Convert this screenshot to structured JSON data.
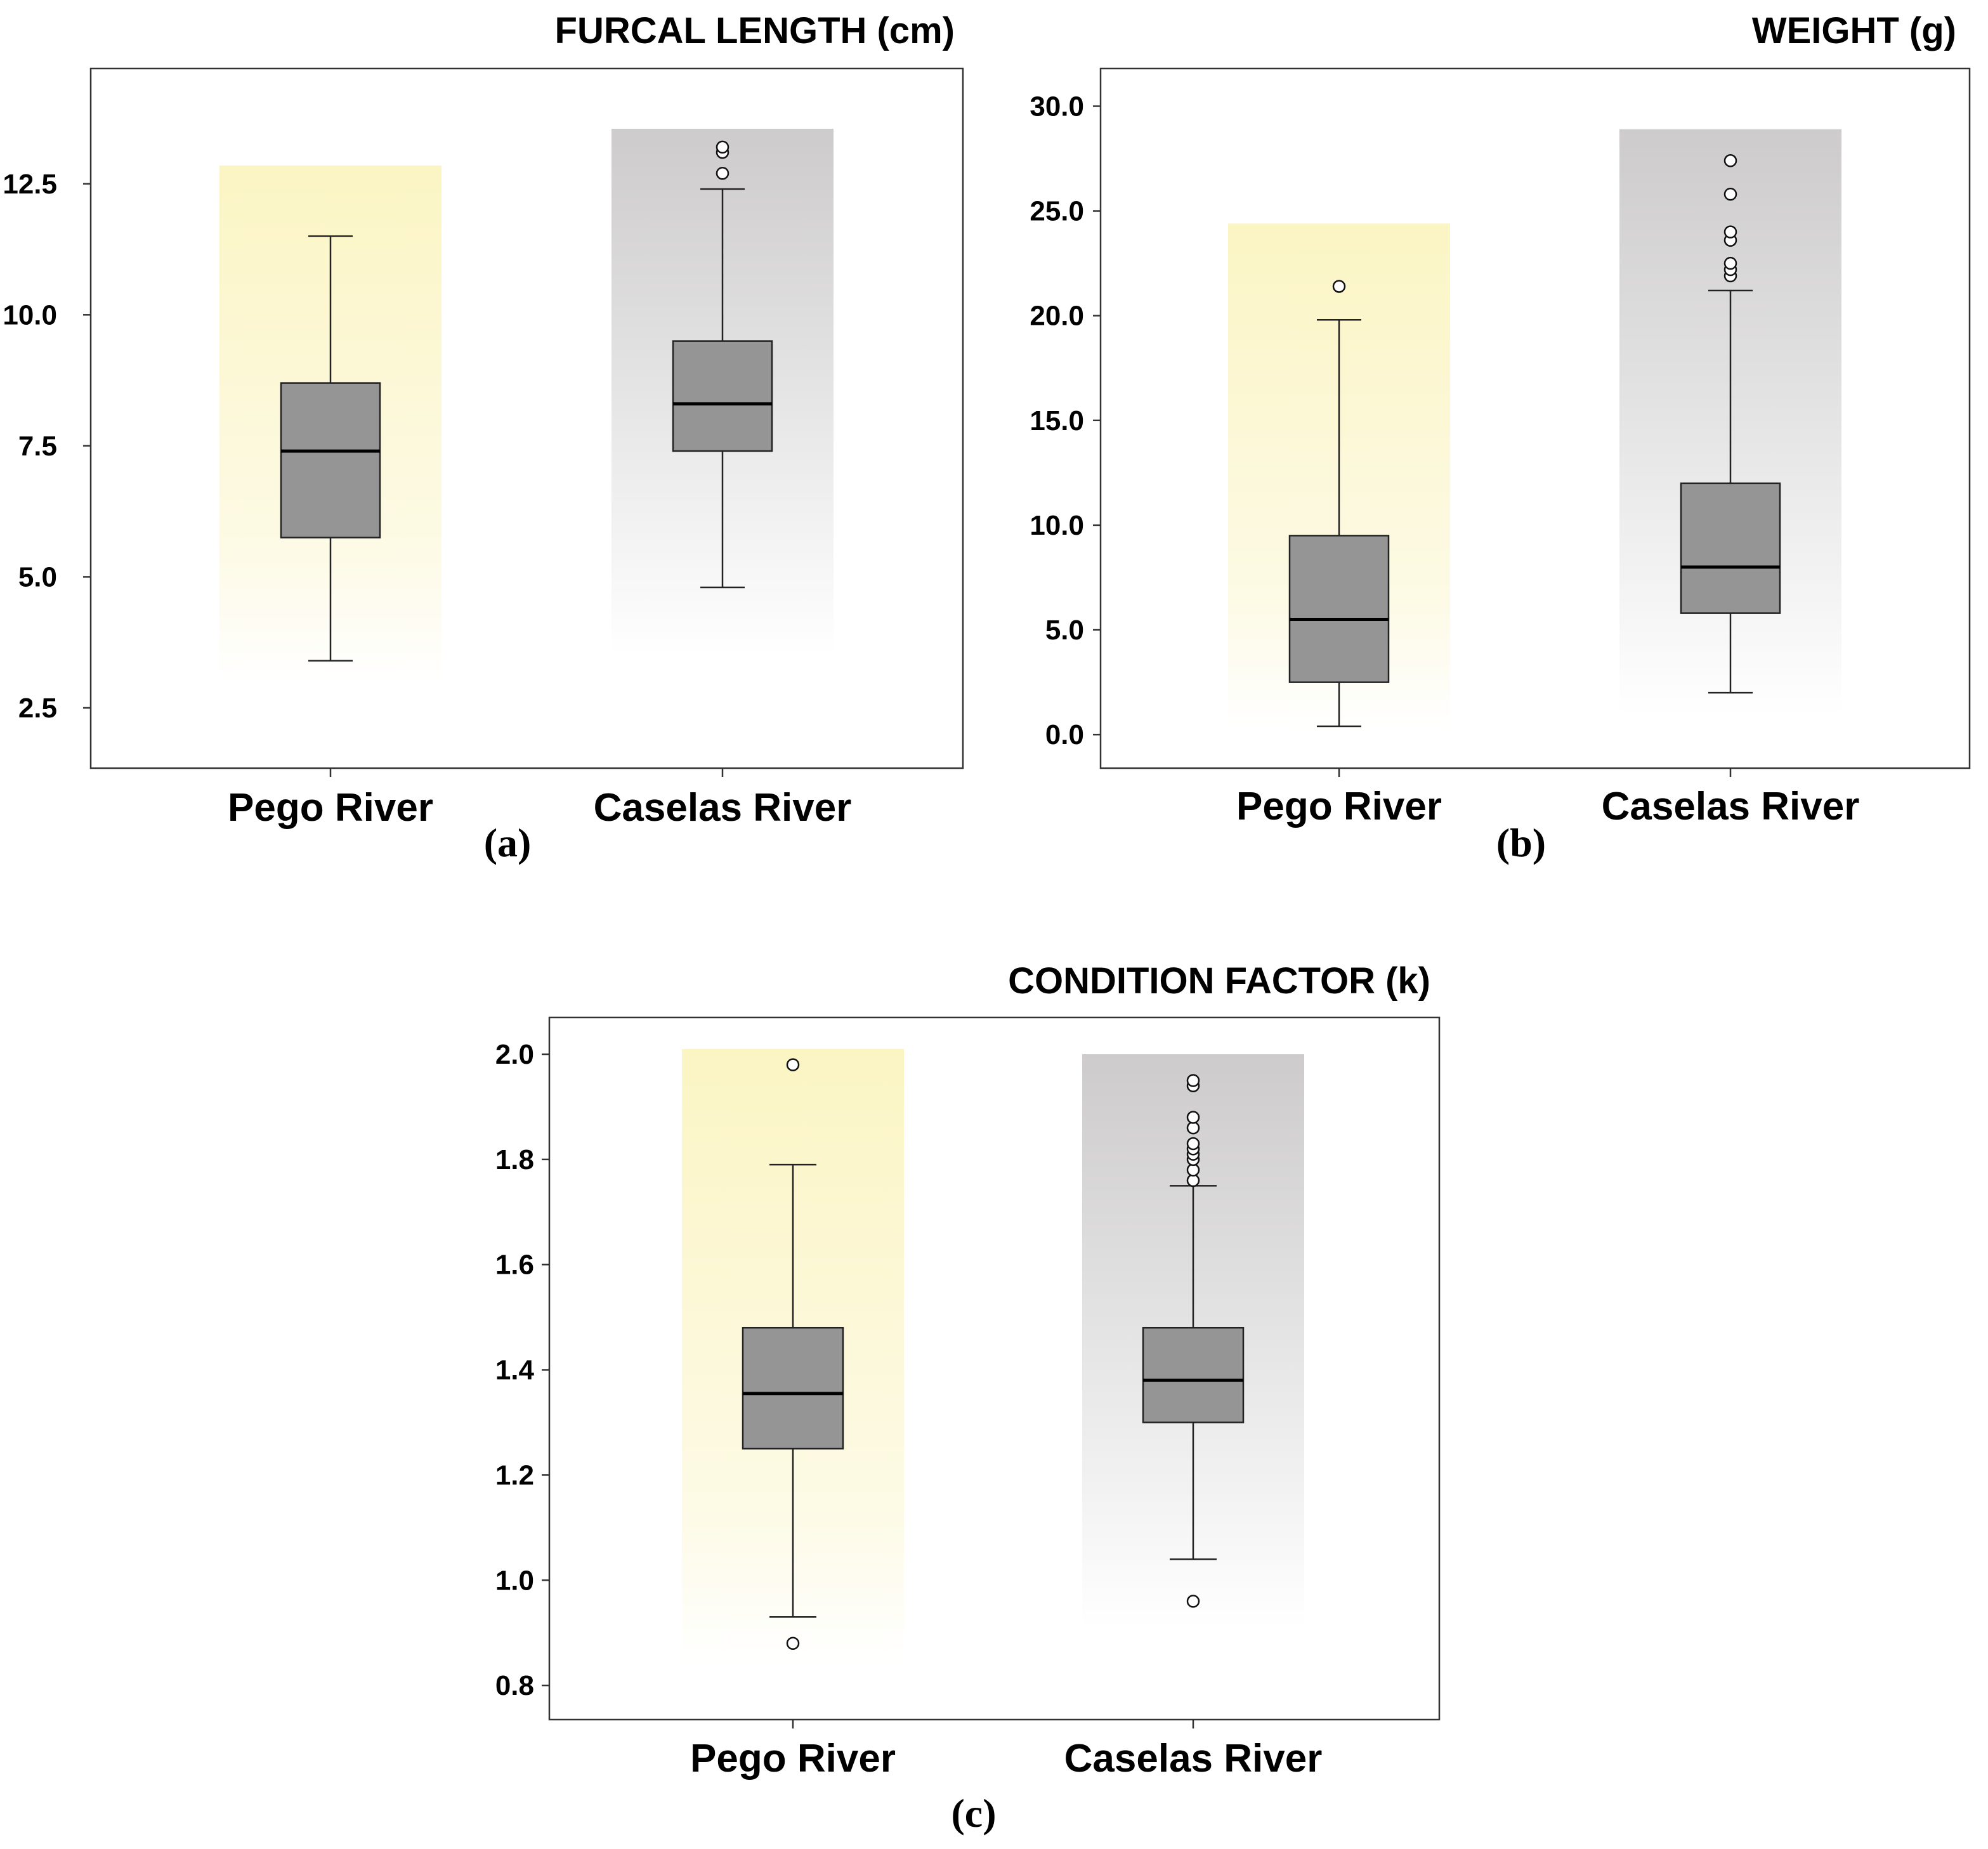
{
  "figure": {
    "colors": {
      "box_fill": "#959595",
      "box_stroke": "#222222",
      "median_stroke": "#000000",
      "pego_background_top": "#fbf5c4",
      "caselas_background_top": "#cdcbcb",
      "background_bottom": "#ffffff"
    }
  },
  "chart_data": [
    {
      "type": "box",
      "panel_label": "(a)",
      "title": "FURCAL LENGTH (cm)",
      "xlabel": "",
      "ylabel": "",
      "ylim": [
        1.35,
        14.7
      ],
      "yticks": [
        2.5,
        5.0,
        7.5,
        10.0,
        12.5
      ],
      "ytick_labels": [
        "2.5",
        "5.0",
        "7.5",
        "10.0",
        "12.5"
      ],
      "categories": [
        "Pego River",
        "Caselas River"
      ],
      "series": [
        {
          "name": "Pego River",
          "background": "yellow",
          "background_top": 12.85,
          "background_bottom": 3.0,
          "whisker_low": 3.4,
          "q1": 5.75,
          "median": 7.4,
          "q3": 8.7,
          "whisker_high": 11.5,
          "outliers": []
        },
        {
          "name": "Caselas River",
          "background": "gray",
          "background_top": 13.55,
          "background_bottom": 3.5,
          "whisker_low": 4.8,
          "q1": 7.4,
          "median": 8.3,
          "q3": 9.5,
          "whisker_high": 12.4,
          "outliers": [
            12.7,
            13.1,
            13.2
          ]
        }
      ]
    },
    {
      "type": "box",
      "panel_label": "(b)",
      "title": "WEIGHT (g)",
      "xlabel": "",
      "ylabel": "",
      "ylim": [
        -1.6,
        31.8
      ],
      "yticks": [
        0.0,
        5.0,
        10.0,
        15.0,
        20.0,
        25.0,
        30.0
      ],
      "ytick_labels": [
        "0.0",
        "5.0",
        "10.0",
        "15.0",
        "20.0",
        "25.0",
        "30.0"
      ],
      "categories": [
        "Pego River",
        "Caselas River"
      ],
      "series": [
        {
          "name": "Pego River",
          "background": "yellow",
          "background_top": 24.4,
          "background_bottom": 0.3,
          "whisker_low": 0.4,
          "q1": 2.5,
          "median": 5.5,
          "q3": 9.5,
          "whisker_high": 19.8,
          "outliers": [
            21.4
          ]
        },
        {
          "name": "Caselas River",
          "background": "gray",
          "background_top": 28.9,
          "background_bottom": 0.9,
          "whisker_low": 2.0,
          "q1": 5.8,
          "median": 8.0,
          "q3": 12.0,
          "whisker_high": 21.2,
          "outliers": [
            21.9,
            22.2,
            22.5,
            23.6,
            24.0,
            25.8,
            27.4
          ]
        }
      ]
    },
    {
      "type": "box",
      "panel_label": "(c)",
      "title": "CONDITION FACTOR (k)",
      "xlabel": "",
      "ylabel": "",
      "ylim": [
        0.735,
        2.07
      ],
      "yticks": [
        0.8,
        1.0,
        1.2,
        1.4,
        1.6,
        1.8,
        2.0
      ],
      "ytick_labels": [
        "0.8",
        "1.0",
        "1.2",
        "1.4",
        "1.6",
        "1.8",
        "2.0"
      ],
      "categories": [
        "Pego River",
        "Caselas River"
      ],
      "series": [
        {
          "name": "Pego River",
          "background": "yellow",
          "background_top": 2.01,
          "background_bottom": 0.84,
          "whisker_low": 0.93,
          "q1": 1.25,
          "median": 1.355,
          "q3": 1.48,
          "whisker_high": 1.79,
          "outliers": [
            0.88,
            1.98
          ]
        },
        {
          "name": "Caselas River",
          "background": "gray",
          "background_top": 2.0,
          "background_bottom": 0.91,
          "whisker_low": 1.04,
          "q1": 1.3,
          "median": 1.38,
          "q3": 1.48,
          "whisker_high": 1.75,
          "outliers": [
            0.96,
            1.76,
            1.78,
            1.8,
            1.81,
            1.82,
            1.83,
            1.86,
            1.88,
            1.94,
            1.95
          ]
        }
      ]
    }
  ]
}
